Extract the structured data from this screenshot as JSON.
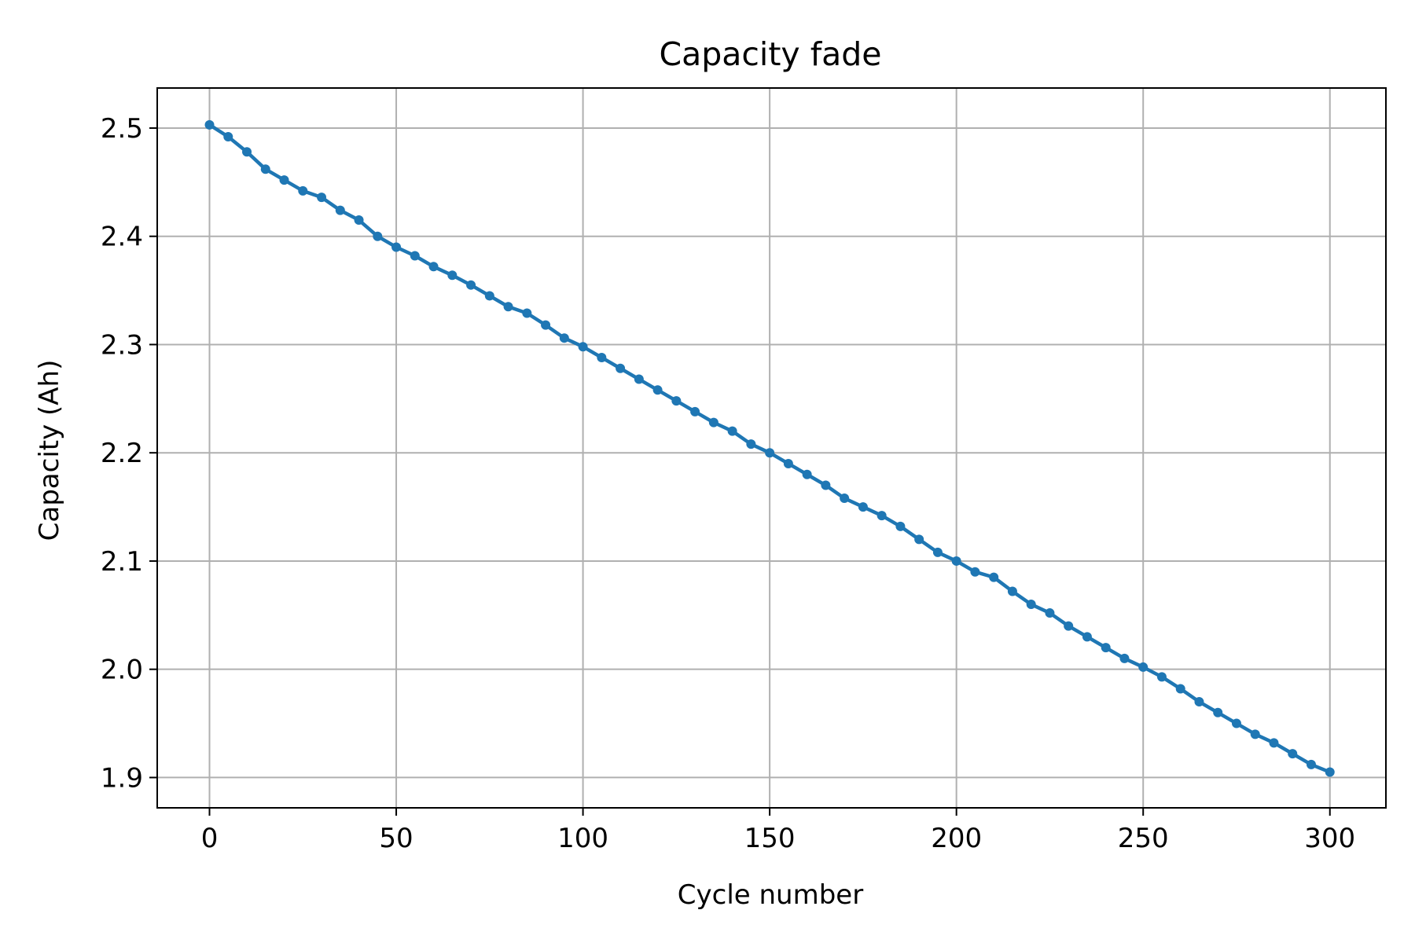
{
  "chart_data": {
    "type": "line",
    "title": "Capacity fade",
    "xlabel": "Cycle number",
    "ylabel": "Capacity (Ah)",
    "xlim": [
      -14,
      315
    ],
    "ylim": [
      1.872,
      2.537
    ],
    "xticks": [
      0,
      50,
      100,
      150,
      200,
      250,
      300
    ],
    "yticks": [
      1.9,
      2.0,
      2.1,
      2.2,
      2.3,
      2.4,
      2.5
    ],
    "xtick_labels": [
      "0",
      "50",
      "100",
      "150",
      "200",
      "250",
      "300"
    ],
    "ytick_labels": [
      "1.9",
      "2.0",
      "2.1",
      "2.2",
      "2.3",
      "2.4",
      "2.5"
    ],
    "grid": true,
    "legend": false,
    "series": [
      {
        "color": "#1f77b4",
        "marker": "circle",
        "x": [
          0,
          5,
          10,
          15,
          20,
          25,
          30,
          35,
          40,
          45,
          50,
          55,
          60,
          65,
          70,
          75,
          80,
          85,
          90,
          95,
          100,
          105,
          110,
          115,
          120,
          125,
          130,
          135,
          140,
          145,
          150,
          155,
          160,
          165,
          170,
          175,
          180,
          185,
          190,
          195,
          200,
          205,
          210,
          215,
          220,
          225,
          230,
          235,
          240,
          245,
          250,
          255,
          260,
          265,
          270,
          275,
          280,
          285,
          290,
          295,
          300
        ],
        "y": [
          2.503,
          2.492,
          2.478,
          2.462,
          2.452,
          2.442,
          2.436,
          2.424,
          2.415,
          2.4,
          2.39,
          2.382,
          2.372,
          2.364,
          2.355,
          2.345,
          2.335,
          2.329,
          2.318,
          2.306,
          2.298,
          2.288,
          2.278,
          2.268,
          2.258,
          2.248,
          2.238,
          2.228,
          2.22,
          2.208,
          2.2,
          2.19,
          2.18,
          2.17,
          2.158,
          2.15,
          2.142,
          2.132,
          2.12,
          2.108,
          2.1,
          2.09,
          2.085,
          2.072,
          2.06,
          2.052,
          2.04,
          2.03,
          2.02,
          2.01,
          2.002,
          1.993,
          1.982,
          1.97,
          1.96,
          1.95,
          1.94,
          1.932,
          1.922,
          1.912,
          1.905
        ]
      }
    ]
  }
}
